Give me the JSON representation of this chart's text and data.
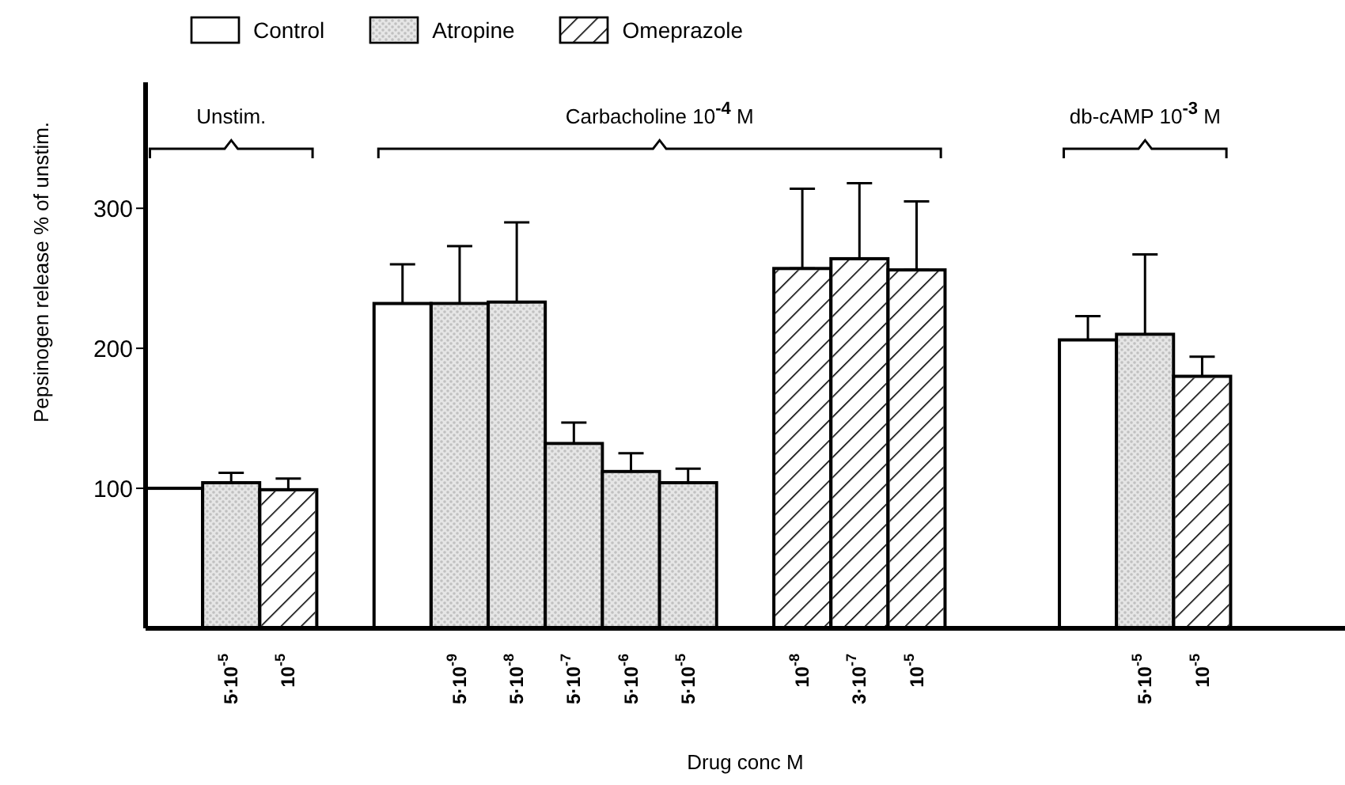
{
  "chart_data": {
    "type": "bar",
    "stacked": true,
    "xlabel": "Drug conc M",
    "ylabel": "Pepsinogen release % of unstim.",
    "categories": [
      null,
      "5·10$^{-5}$",
      "10$^{-5}$",
      null,
      null,
      "5·10$^{-9}$",
      "5·10$^{-8}$",
      "5·10$^{-7}$",
      "5·10$^{-6}$",
      "5·10$^{-5}$",
      null,
      "10$^{-8}$",
      "3·10$^{-7}$",
      "10$^{-5}$",
      null,
      null,
      null,
      "5·10$^{-5}$",
      "10$^{-5}$",
      null,
      null
    ],
    "series": [
      {
        "name": "Control",
        "color": "#ffffff",
        "values": [
          100,
          null,
          null,
          null,
          232,
          null,
          null,
          null,
          null,
          null,
          null,
          null,
          null,
          null,
          null,
          null,
          206,
          null,
          null,
          null,
          null
        ],
        "errors": [
          null,
          null,
          null,
          null,
          [
            232,
            260
          ],
          null,
          null,
          null,
          null,
          null,
          null,
          null,
          null,
          null,
          null,
          null,
          [
            206,
            223
          ],
          null,
          null,
          null,
          null
        ]
      },
      {
        "name": "Atropine",
        "color": "#c0c0c0",
        "values": [
          null,
          104,
          null,
          null,
          null,
          232,
          233,
          132,
          112,
          104,
          null,
          null,
          null,
          null,
          null,
          null,
          null,
          210,
          null,
          null,
          null
        ],
        "errors": [
          null,
          [
            104,
            111
          ],
          null,
          null,
          null,
          [
            232,
            273
          ],
          [
            233,
            290
          ],
          [
            132,
            147
          ],
          [
            112,
            125
          ],
          [
            104,
            114
          ],
          null,
          null,
          null,
          null,
          null,
          null,
          null,
          [
            210,
            267
          ],
          null,
          null,
          null
        ]
      },
      {
        "name": "Omeprazole",
        "color": "#ffffff",
        "values": [
          null,
          null,
          99,
          null,
          null,
          null,
          null,
          null,
          null,
          null,
          null,
          257,
          264,
          256,
          null,
          null,
          null,
          null,
          180,
          null,
          null
        ],
        "errors": [
          null,
          null,
          [
            99,
            107
          ],
          null,
          null,
          null,
          null,
          null,
          null,
          null,
          null,
          [
            257,
            314
          ],
          [
            264,
            318
          ],
          [
            256,
            305
          ],
          null,
          null,
          null,
          null,
          [
            180,
            194
          ],
          null,
          null
        ]
      }
    ],
    "ylim": [
      0,
      390
    ],
    "yticks": [
      100,
      200,
      300
    ],
    "grid": false,
    "legend": "top",
    "annotations": [
      "Unstim.",
      "Carbacholine 10$^{-4}$M",
      "db-cAMP 10$^{-3}$M"
    ]
  }
}
